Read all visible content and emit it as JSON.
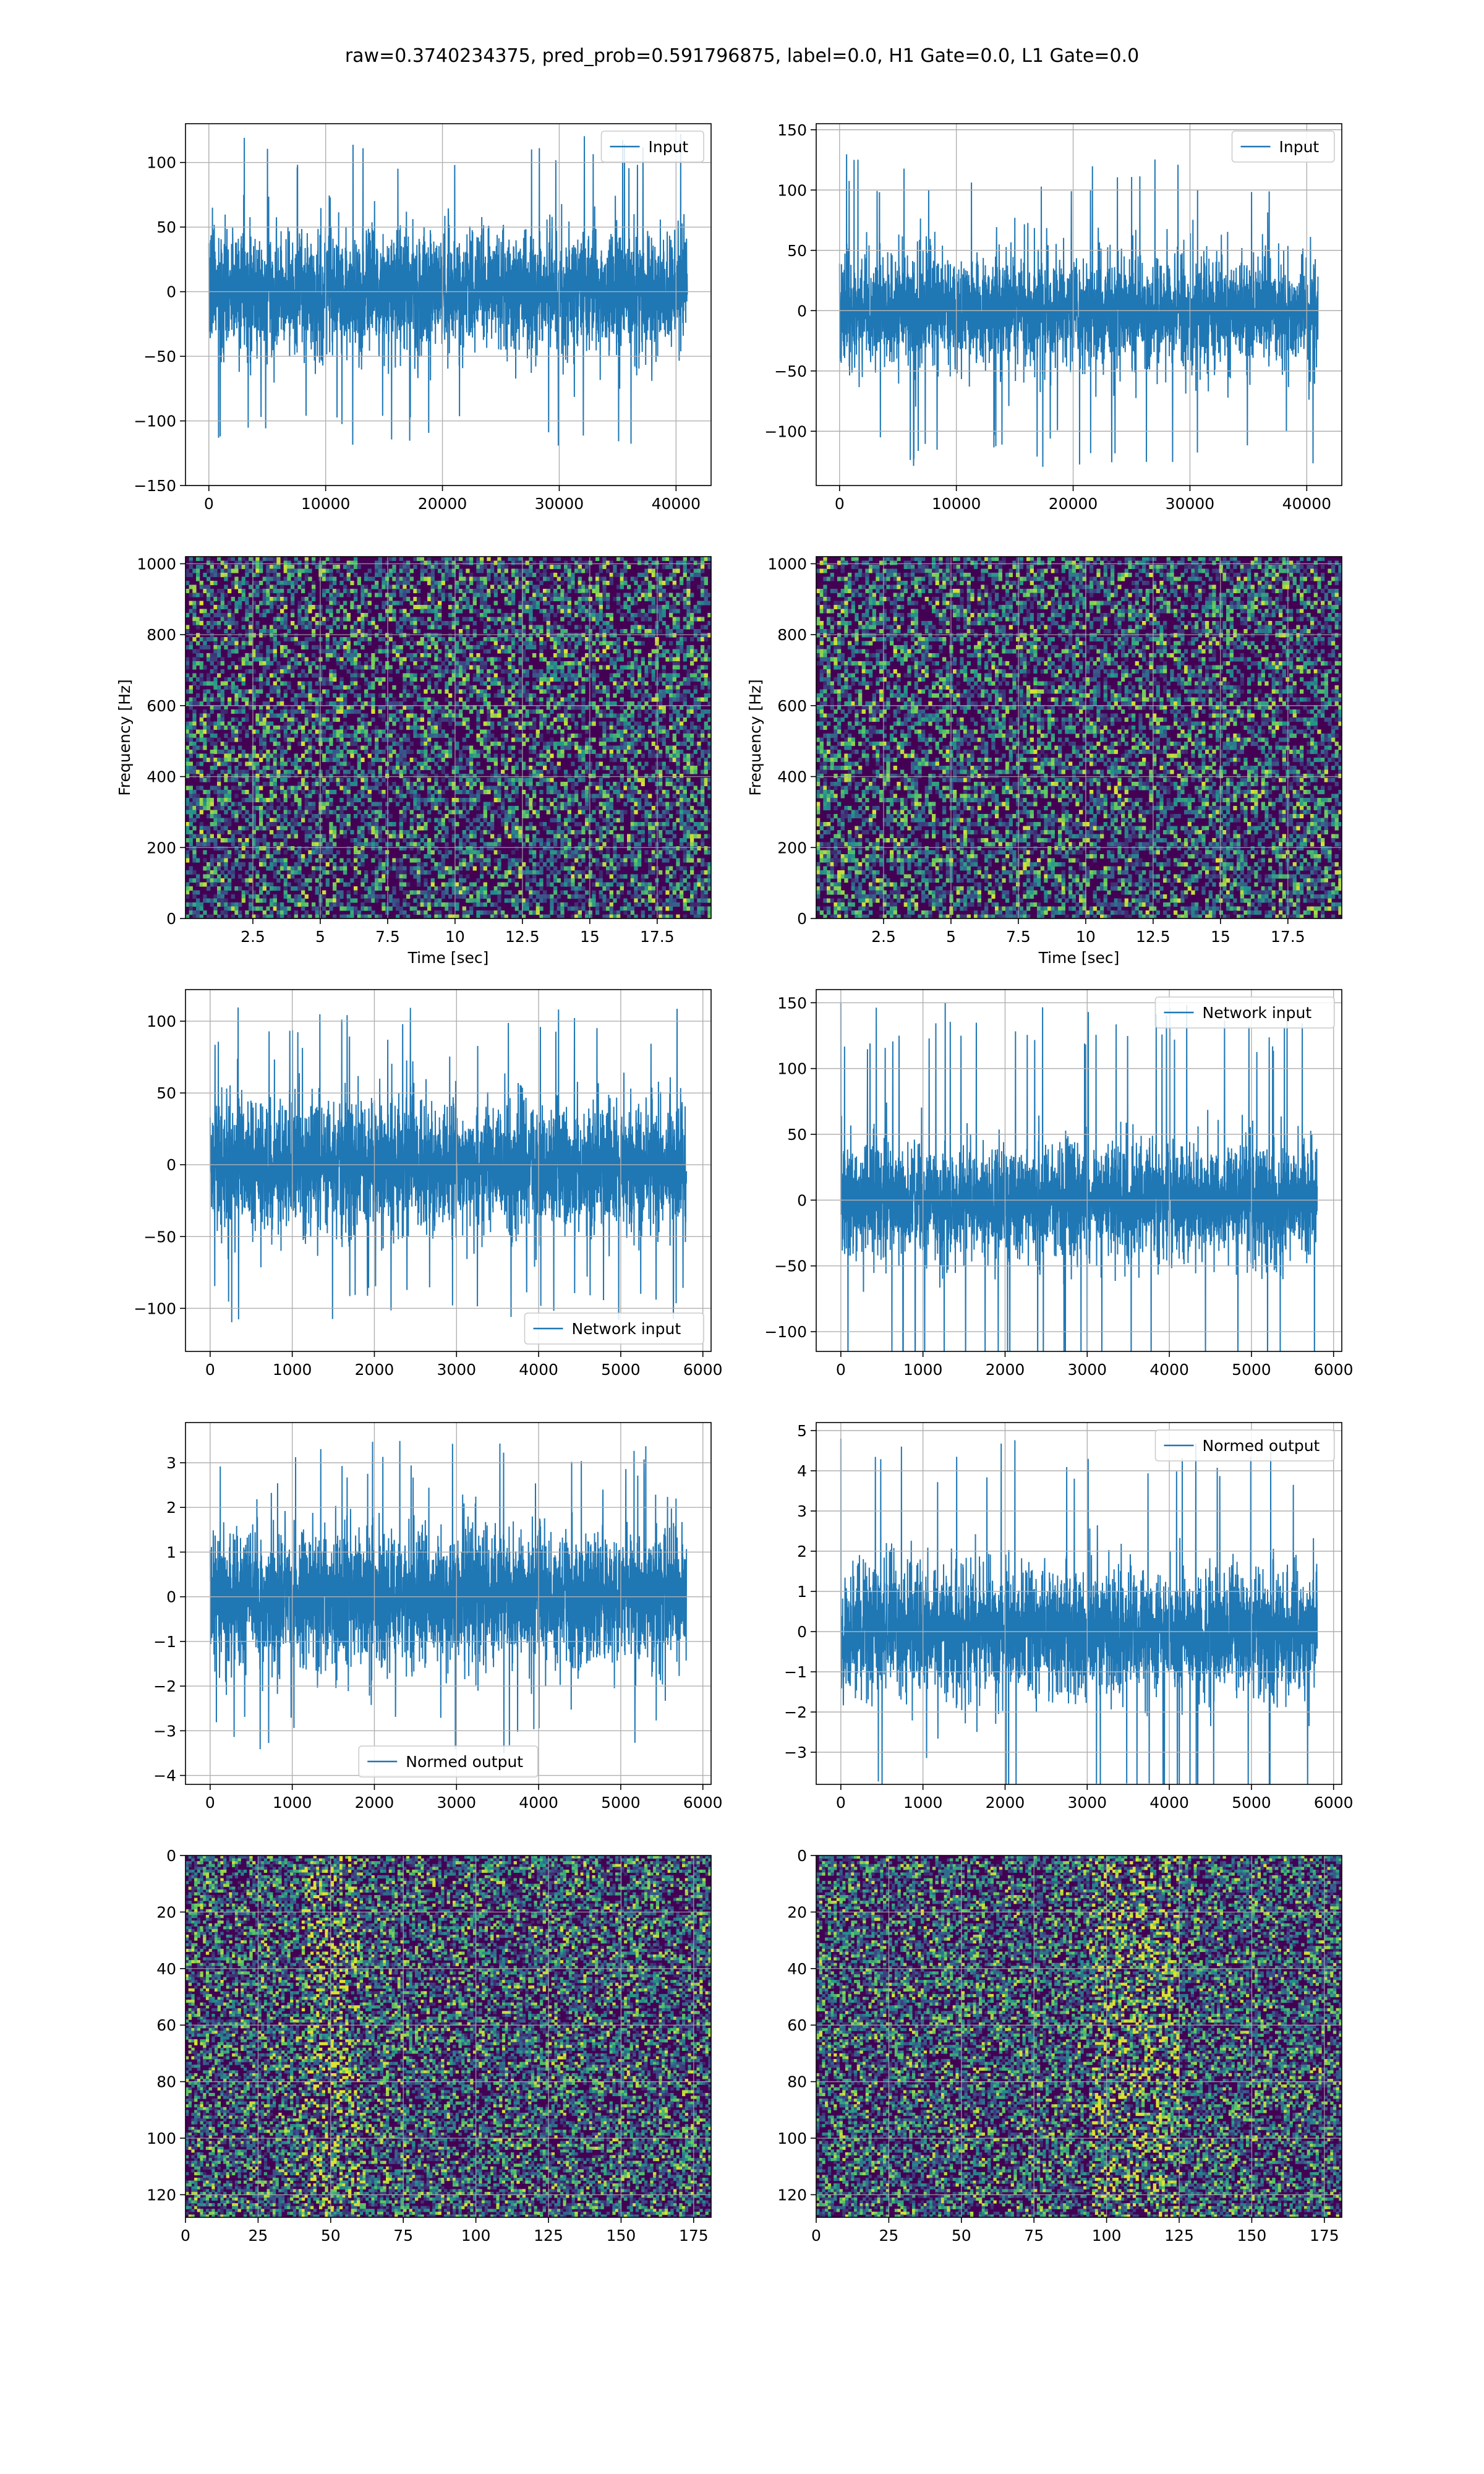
{
  "suptitle": "raw=0.3740234375, pred_prob=0.591796875, label=0.0, H1 Gate=0.0, L1 Gate=0.0",
  "colors": {
    "line": "#1f77b4",
    "grid": "#b0b0b0",
    "legend_edge": "#cccccc",
    "colormap": [
      "#440154",
      "#3b528b",
      "#21918c",
      "#5ec962",
      "#fde725"
    ]
  },
  "chart_data": [
    {
      "id": "p0",
      "type": "line",
      "row": 0,
      "col": 0,
      "series": [
        {
          "name": "Input"
        }
      ],
      "legend": "upper right",
      "xlim": [
        -2000,
        43000
      ],
      "ylim": [
        -150,
        130
      ],
      "xticks": [
        0,
        10000,
        20000,
        30000,
        40000
      ],
      "yticks": [
        -150,
        -100,
        -50,
        0,
        50,
        100
      ],
      "x_range": [
        0,
        40960
      ],
      "noise": {
        "sigma": 22,
        "peak": 125,
        "seed": 11
      },
      "grid": true
    },
    {
      "id": "p1",
      "type": "line",
      "row": 0,
      "col": 1,
      "series": [
        {
          "name": "Input"
        }
      ],
      "legend": "upper right",
      "xlim": [
        -2000,
        43000
      ],
      "ylim": [
        -145,
        155
      ],
      "xticks": [
        0,
        10000,
        20000,
        30000,
        40000
      ],
      "yticks": [
        -100,
        -50,
        0,
        50,
        100,
        150
      ],
      "x_range": [
        0,
        40960
      ],
      "noise": {
        "sigma": 22,
        "peak": 130,
        "seed": 23
      },
      "grid": true
    },
    {
      "id": "p2",
      "type": "heatmap",
      "row": 1,
      "col": 0,
      "xlabel": "Time [sec]",
      "ylabel": "Frequency [Hz]",
      "xlim": [
        0,
        19.5
      ],
      "ylim": [
        0,
        1020
      ],
      "xticks": [
        2.5,
        5.0,
        7.5,
        10.0,
        12.5,
        15.0,
        17.5
      ],
      "yticks": [
        0,
        200,
        400,
        600,
        800,
        1000
      ],
      "cells": [
        150,
        90
      ],
      "seed": 5,
      "grid": true
    },
    {
      "id": "p3",
      "type": "heatmap",
      "row": 1,
      "col": 1,
      "xlabel": "Time [sec]",
      "ylabel": "Frequency [Hz]",
      "xlim": [
        0,
        19.5
      ],
      "ylim": [
        0,
        1020
      ],
      "xticks": [
        2.5,
        5.0,
        7.5,
        10.0,
        12.5,
        15.0,
        17.5
      ],
      "yticks": [
        0,
        200,
        400,
        600,
        800,
        1000
      ],
      "cells": [
        150,
        90
      ],
      "seed": 9,
      "grid": true
    },
    {
      "id": "p4",
      "type": "line",
      "row": 2,
      "col": 0,
      "series": [
        {
          "name": "Network input"
        }
      ],
      "legend": "lower right",
      "xlim": [
        -300,
        6100
      ],
      "ylim": [
        -130,
        122
      ],
      "xticks": [
        0,
        1000,
        2000,
        3000,
        4000,
        5000,
        6000
      ],
      "yticks": [
        -100,
        -50,
        0,
        50,
        100
      ],
      "x_range": [
        0,
        5800
      ],
      "noise": {
        "sigma": 22,
        "peak": 110,
        "seed": 31
      },
      "grid": true
    },
    {
      "id": "p5",
      "type": "line",
      "row": 2,
      "col": 1,
      "series": [
        {
          "name": "Network input"
        }
      ],
      "legend": "upper right",
      "xlim": [
        -300,
        6100
      ],
      "ylim": [
        -115,
        160
      ],
      "xticks": [
        0,
        1000,
        2000,
        3000,
        4000,
        5000,
        6000
      ],
      "yticks": [
        -100,
        -50,
        0,
        50,
        100,
        150
      ],
      "x_range": [
        0,
        5800
      ],
      "noise": {
        "sigma": 21,
        "peak": 150,
        "seed": 47
      },
      "grid": true
    },
    {
      "id": "p6",
      "type": "line",
      "row": 3,
      "col": 0,
      "series": [
        {
          "name": "Normed output"
        }
      ],
      "legend": "lower center",
      "xlim": [
        -300,
        6100
      ],
      "ylim": [
        -4.2,
        3.9
      ],
      "xticks": [
        0,
        1000,
        2000,
        3000,
        4000,
        5000,
        6000
      ],
      "yticks": [
        -4,
        -3,
        -2,
        -1,
        0,
        1,
        2,
        3
      ],
      "x_range": [
        0,
        5800
      ],
      "noise": {
        "sigma": 0.75,
        "peak": 3.5,
        "seed": 53
      },
      "grid": true
    },
    {
      "id": "p7",
      "type": "line",
      "row": 3,
      "col": 1,
      "series": [
        {
          "name": "Normed output"
        }
      ],
      "legend": "upper right",
      "xlim": [
        -300,
        6100
      ],
      "ylim": [
        -3.8,
        5.2
      ],
      "xticks": [
        0,
        1000,
        2000,
        3000,
        4000,
        5000,
        6000
      ],
      "yticks": [
        -3,
        -2,
        -1,
        0,
        1,
        2,
        3,
        4,
        5
      ],
      "x_range": [
        0,
        5800
      ],
      "noise": {
        "sigma": 0.75,
        "peak": 4.8,
        "seed": 61
      },
      "grid": true
    },
    {
      "id": "p8",
      "type": "heatmap",
      "row": 4,
      "col": 0,
      "origin": "upper",
      "xlim": [
        0,
        181
      ],
      "ylim": [
        128,
        0
      ],
      "xticks": [
        0,
        25,
        50,
        75,
        100,
        125,
        150,
        175
      ],
      "yticks": [
        0,
        20,
        40,
        60,
        80,
        100,
        120
      ],
      "cells": [
        181,
        128
      ],
      "seed": 71,
      "band": [
        40,
        60
      ],
      "grid": true
    },
    {
      "id": "p9",
      "type": "heatmap",
      "row": 4,
      "col": 1,
      "origin": "upper",
      "xlim": [
        0,
        181
      ],
      "ylim": [
        128,
        0
      ],
      "xticks": [
        0,
        25,
        50,
        75,
        100,
        125,
        150,
        175
      ],
      "yticks": [
        0,
        20,
        40,
        60,
        80,
        100,
        120
      ],
      "cells": [
        181,
        128
      ],
      "seed": 83,
      "band": [
        95,
        125
      ],
      "grid": true
    }
  ]
}
